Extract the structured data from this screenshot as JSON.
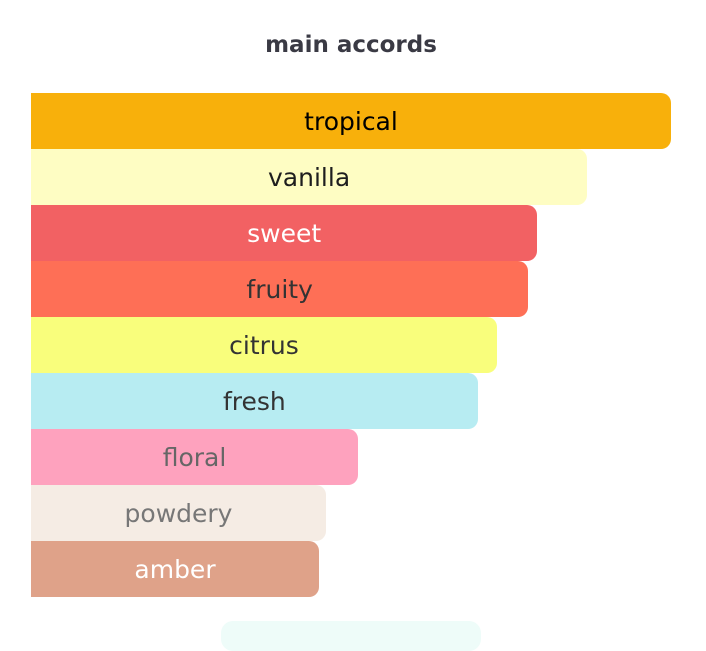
{
  "chart_data": {
    "type": "bar",
    "orientation": "horizontal",
    "title": "main accords",
    "unit": "percent of strongest accord",
    "categories": [
      "tropical",
      "vanilla",
      "sweet",
      "fruity",
      "citrus",
      "fresh",
      "floral",
      "powdery",
      "amber"
    ],
    "values": [
      100,
      86.9,
      79.1,
      77.7,
      72.8,
      69.8,
      51.1,
      46.1,
      45.0
    ],
    "colors": [
      "#f8b00b",
      "#fefdc3",
      "#f26163",
      "#fe6f56",
      "#f9fe7c",
      "#b7ecf2",
      "#fea2be",
      "#f5ece4",
      "#dfa289"
    ],
    "text_colors": [
      "#000000",
      "#1e1e1e",
      "#ffffff",
      "#333333",
      "#333333",
      "#333333",
      "#666666",
      "#777777",
      "#ffffff"
    ],
    "xlim": [
      0,
      100
    ],
    "grid": false,
    "legend": "none"
  }
}
